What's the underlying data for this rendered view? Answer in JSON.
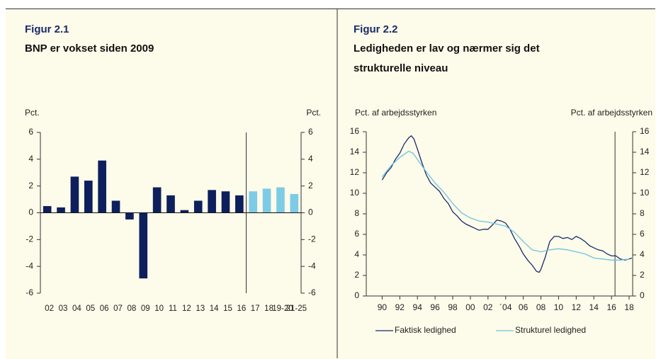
{
  "chart_data": [
    {
      "type": "bar",
      "figure_label": "Figur 2.1",
      "title": "BNP er vokset siden 2009",
      "y_label": "Pct.",
      "y2_label": "Pct.",
      "categories": [
        "02",
        "03",
        "04",
        "05",
        "06",
        "07",
        "08",
        "09",
        "10",
        "11",
        "12",
        "13",
        "14",
        "15",
        "16",
        "17",
        "18",
        "19-20",
        "21-25"
      ],
      "values": [
        0.5,
        0.4,
        2.7,
        2.4,
        3.9,
        0.9,
        -0.5,
        -4.9,
        1.9,
        1.3,
        0.2,
        0.9,
        1.7,
        1.6,
        1.3,
        1.6,
        1.8,
        1.9,
        1.4
      ],
      "colors": [
        "#0d1f5c",
        "#0d1f5c",
        "#0d1f5c",
        "#0d1f5c",
        "#0d1f5c",
        "#0d1f5c",
        "#0d1f5c",
        "#0d1f5c",
        "#0d1f5c",
        "#0d1f5c",
        "#0d1f5c",
        "#0d1f5c",
        "#0d1f5c",
        "#0d1f5c",
        "#0d1f5c",
        "#7ecbe6",
        "#7ecbe6",
        "#7ecbe6",
        "#7ecbe6"
      ],
      "ylim": [
        -6,
        6
      ],
      "yticks": [
        -6,
        -4,
        -2,
        0,
        2,
        4,
        6
      ],
      "y2lim": [
        -6,
        6
      ],
      "y2ticks": [
        -6,
        -4,
        -2,
        0,
        2,
        4,
        6
      ]
    },
    {
      "type": "line",
      "figure_label": "Figur 2.2",
      "title": "Ledigheden er lav og nærmer sig det strukturelle niveau",
      "y_label": "Pct. af arbejdsstyrken",
      "y2_label": "Pct. af arbejdsstyrken",
      "xlim": [
        1988.2,
        2018.4
      ],
      "xticks": [
        {
          "value": 1990,
          "label": "90"
        },
        {
          "value": 1992,
          "label": "92"
        },
        {
          "value": 1994,
          "label": "94"
        },
        {
          "value": 1996,
          "label": "96"
        },
        {
          "value": 1998,
          "label": "98"
        },
        {
          "value": 2000,
          "label": "00"
        },
        {
          "value": 2002,
          "label": "02"
        },
        {
          "value": 2004,
          "label": "´04"
        },
        {
          "value": 2006,
          "label": "06"
        },
        {
          "value": 2008,
          "label": "08"
        },
        {
          "value": 2010,
          "label": "10"
        },
        {
          "value": 2012,
          "label": "12"
        },
        {
          "value": 2014,
          "label": "14"
        },
        {
          "value": 2016,
          "label": "16"
        },
        {
          "value": 2018,
          "label": "18"
        }
      ],
      "ylim": [
        0,
        16
      ],
      "yticks": [
        0,
        2,
        4,
        6,
        8,
        10,
        12,
        14,
        16
      ],
      "y2lim": [
        0,
        16
      ],
      "y2ticks": [
        0,
        2,
        4,
        6,
        8,
        10,
        12,
        14,
        16
      ],
      "vline_x": 2016.4,
      "series": [
        {
          "name": "Faktisk ledighed",
          "color": "#1a2a6c",
          "x": [
            1990,
            1990.5,
            1991,
            1991.5,
            1992,
            1992.5,
            1993,
            1993.3,
            1993.6,
            1994,
            1994.5,
            1995,
            1995.5,
            1996,
            1996.5,
            1997,
            1997.5,
            1998,
            1998.5,
            1999,
            1999.5,
            2000,
            2000.5,
            2001,
            2001.5,
            2002,
            2002.5,
            2003,
            2003.5,
            2004,
            2004.5,
            2005,
            2005.5,
            2006,
            2006.5,
            2007,
            2007.5,
            2007.8,
            2008,
            2008.5,
            2009,
            2009.5,
            2010,
            2010.5,
            2011,
            2011.5,
            2012,
            2012.5,
            2013,
            2013.5,
            2014,
            2014.5,
            2015,
            2015.5,
            2016,
            2016.5,
            2017,
            2017.5,
            2018,
            2018.3
          ],
          "values": [
            11.3,
            12,
            12.5,
            13.3,
            13.9,
            14.8,
            15.4,
            15.6,
            15.3,
            14.3,
            13,
            11.8,
            11,
            10.6,
            10.2,
            9.5,
            9,
            8.2,
            7.8,
            7.3,
            7.0,
            6.8,
            6.6,
            6.4,
            6.5,
            6.5,
            6.9,
            7.4,
            7.3,
            7.1,
            6.5,
            5.6,
            4.9,
            4.1,
            3.5,
            3.0,
            2.4,
            2.3,
            2.6,
            3.8,
            5.3,
            5.8,
            5.8,
            5.6,
            5.7,
            5.5,
            5.8,
            5.6,
            5.3,
            4.9,
            4.7,
            4.5,
            4.4,
            4.1,
            3.9,
            3.9,
            3.6,
            3.5,
            3.6,
            3.7
          ]
        },
        {
          "name": "Strukturel ledighed",
          "color": "#6cc3e0",
          "x": [
            1990,
            1991,
            1992,
            1993,
            1993.5,
            1994,
            1995,
            1996,
            1997,
            1998,
            1999,
            2000,
            2001,
            2002,
            2003,
            2004,
            2005,
            2006,
            2007,
            2008,
            2009,
            2010,
            2011,
            2012,
            2013,
            2014,
            2015,
            2016,
            2017,
            2018
          ],
          "values": [
            11.6,
            12.7,
            13.5,
            14.1,
            13.9,
            13.3,
            12.1,
            11.0,
            10.1,
            9.0,
            8.1,
            7.6,
            7.3,
            7.2,
            7.0,
            6.8,
            6.2,
            5.3,
            4.5,
            4.3,
            4.5,
            4.6,
            4.5,
            4.3,
            4.1,
            3.7,
            3.6,
            3.5,
            3.5,
            3.6
          ]
        }
      ]
    }
  ]
}
